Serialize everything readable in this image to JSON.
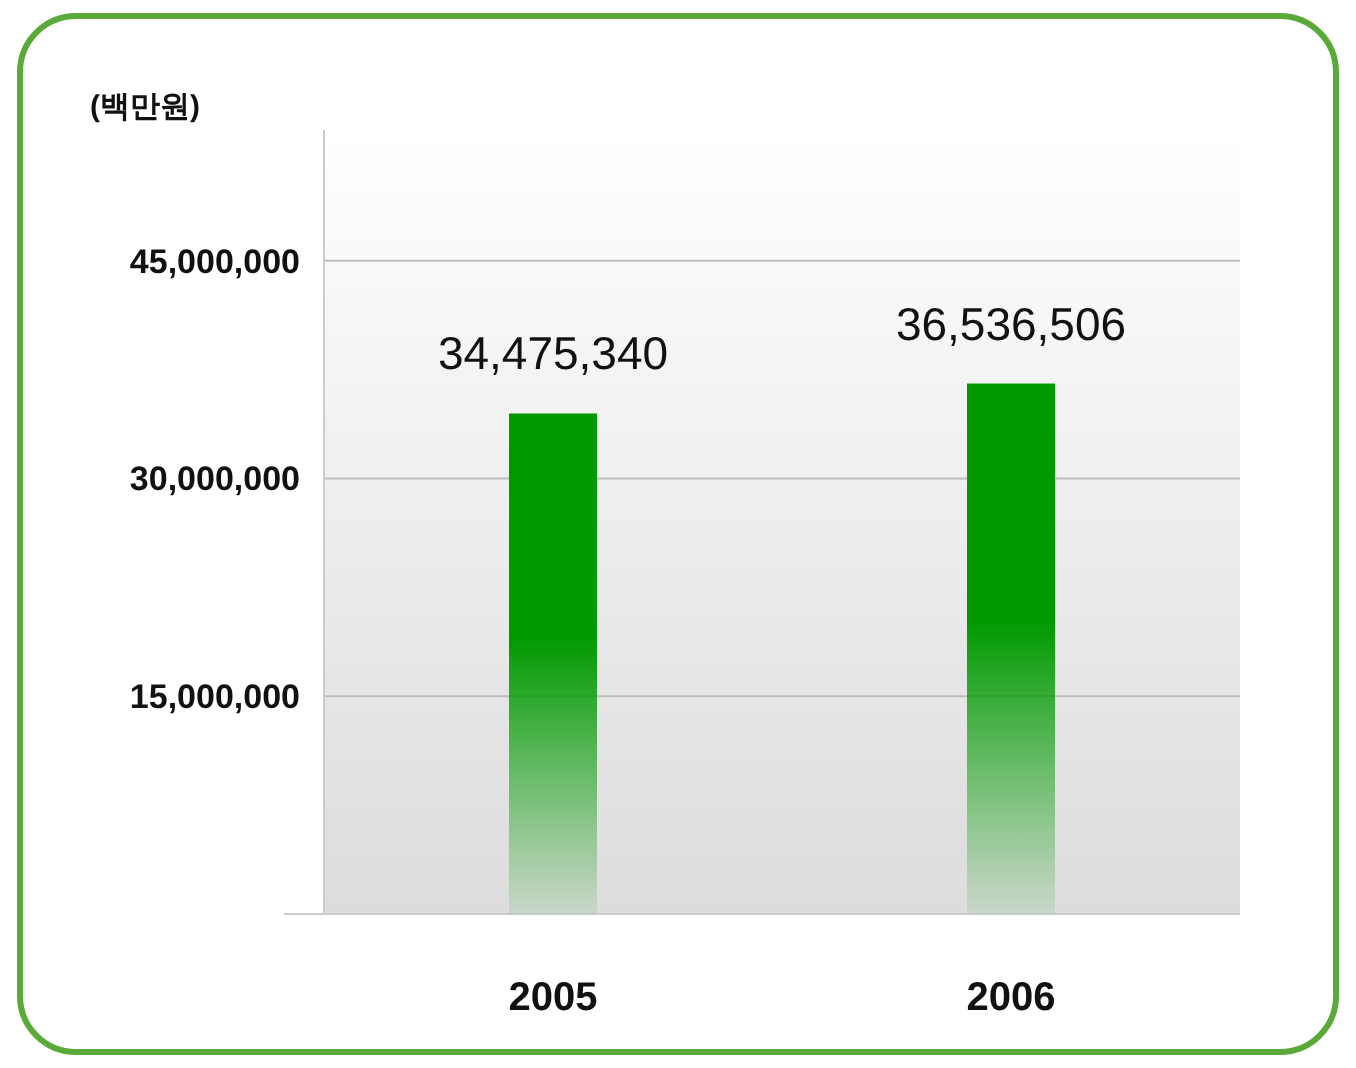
{
  "chart_data": {
    "type": "bar",
    "ylabel": "(백만원)",
    "categories": [
      "2005",
      "2006"
    ],
    "values": [
      34475340,
      36536506
    ],
    "value_labels": [
      "34,475,340",
      "36,536,506"
    ],
    "color": "#009a00",
    "ylim": [
      0,
      54000000
    ],
    "yticks": [
      {
        "value": 15000000,
        "label": "15,000,000"
      },
      {
        "value": 30000000,
        "label": "30,000,000"
      },
      {
        "value": 45000000,
        "label": "45,000,000"
      }
    ],
    "grid": "y"
  }
}
